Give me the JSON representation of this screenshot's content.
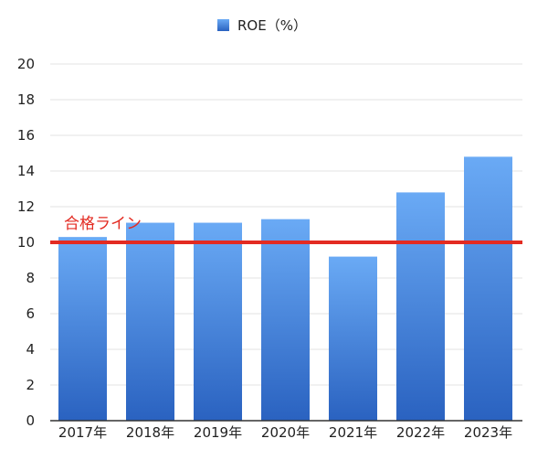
{
  "chart_data": {
    "type": "bar",
    "categories": [
      "2017年",
      "2018年",
      "2019年",
      "2020年",
      "2021年",
      "2022年",
      "2023年"
    ],
    "series": [
      {
        "name": "ROE（%）",
        "values": [
          10.3,
          11.1,
          11.1,
          11.3,
          9.2,
          12.8,
          14.8
        ]
      }
    ],
    "ylim": [
      0,
      20
    ],
    "yticks": [
      0,
      2,
      4,
      6,
      8,
      10,
      12,
      14,
      16,
      18,
      20
    ],
    "grid": true,
    "legend_position": "top-center",
    "reference_line": {
      "value": 10,
      "label": "合格ライン",
      "color": "#e32b22"
    },
    "colors": {
      "bar_top": "#6aaaf5",
      "bar_bottom": "#2a62c0",
      "grid": "#e3e3e3",
      "axis": "#333333"
    }
  }
}
